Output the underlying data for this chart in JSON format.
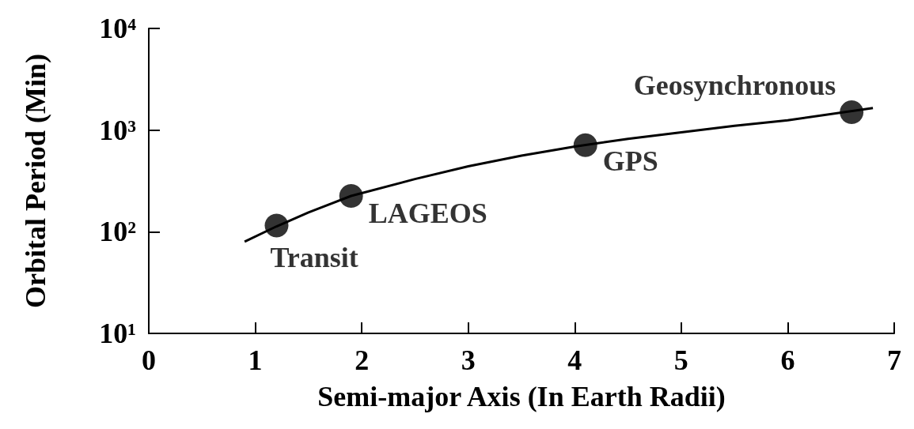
{
  "chart_data": {
    "type": "scatter",
    "xlabel": "Semi-major Axis (In Earth Radii)",
    "ylabel": "Orbital Period (Min)",
    "log": "y",
    "xlim": [
      0,
      7
    ],
    "xticks": [
      0,
      1,
      2,
      3,
      4,
      5,
      6,
      7
    ],
    "ylim": [
      10,
      10000
    ],
    "yticks": [
      {
        "value": 10,
        "label": "10¹"
      },
      {
        "value": 100,
        "label": "10²"
      },
      {
        "value": 1000,
        "label": "10³"
      },
      {
        "value": 10000,
        "label": "10⁴"
      }
    ],
    "series": [
      {
        "type": "line",
        "color": "#000000",
        "marker": "none",
        "x": [
          0.9,
          1.2,
          1.5,
          1.9,
          2.5,
          3,
          3.5,
          4,
          4.5,
          5,
          5.5,
          6,
          6.8
        ],
        "values": [
          80,
          113,
          155,
          225,
          330,
          440,
          560,
          690,
          820,
          950,
          1100,
          1250,
          1650
        ]
      },
      {
        "color": "#000000",
        "marker": "circle",
        "x": [
          1.2,
          1.9,
          4.1,
          6.6
        ],
        "values": [
          115,
          225,
          710,
          1500
        ]
      }
    ],
    "annotations": [
      {
        "text": "Transit",
        "x": 1.2,
        "y": 115
      },
      {
        "text": "LAGEOS",
        "x": 1.9,
        "y": 225
      },
      {
        "text": "GPS",
        "x": 4.1,
        "y": 710
      },
      {
        "text": "Geosynchronous",
        "x": 6.6,
        "y": 1500
      }
    ]
  }
}
